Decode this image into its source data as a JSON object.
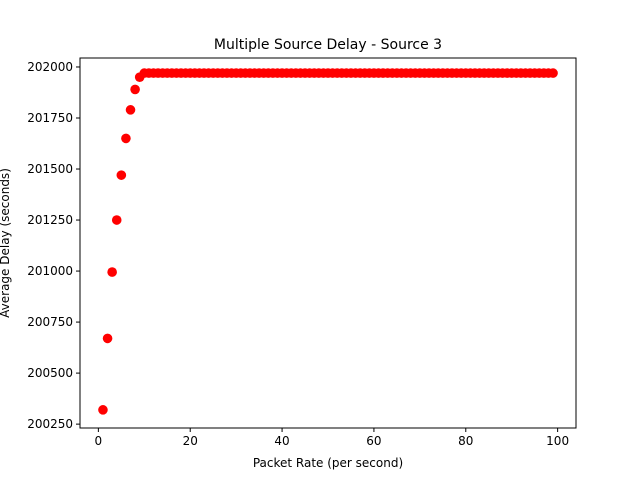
{
  "chart_data": {
    "type": "scatter",
    "title": "Multiple Source Delay - Source 3",
    "xlabel": "Packet Rate (per second)",
    "ylabel": "Average Delay (seconds)",
    "xlim": [
      -4,
      104
    ],
    "ylim": [
      200231,
      202044
    ],
    "xticks": [
      0,
      20,
      40,
      60,
      80,
      100
    ],
    "yticks": [
      200250,
      200500,
      200750,
      201000,
      201250,
      201500,
      201750,
      202000
    ],
    "grid": false,
    "marker_color": "#ff0000",
    "series": [
      {
        "x": [
          1,
          2,
          3,
          4,
          5,
          6,
          7,
          8,
          9,
          10,
          11,
          12,
          13,
          14,
          15,
          16,
          17,
          18,
          19,
          20,
          21,
          22,
          23,
          24,
          25,
          26,
          27,
          28,
          29,
          30,
          31,
          32,
          33,
          34,
          35,
          36,
          37,
          38,
          39,
          40,
          41,
          42,
          43,
          44,
          45,
          46,
          47,
          48,
          49,
          50,
          51,
          52,
          53,
          54,
          55,
          56,
          57,
          58,
          59,
          60,
          61,
          62,
          63,
          64,
          65,
          66,
          67,
          68,
          69,
          70,
          71,
          72,
          73,
          74,
          75,
          76,
          77,
          78,
          79,
          80,
          81,
          82,
          83,
          84,
          85,
          86,
          87,
          88,
          89,
          90,
          91,
          92,
          93,
          94,
          95,
          96,
          97,
          98,
          99
        ],
        "y": [
          200320,
          200670,
          200995,
          201250,
          201470,
          201650,
          201790,
          201890,
          201950,
          201970,
          201970,
          201970,
          201970,
          201970,
          201970,
          201970,
          201970,
          201970,
          201970,
          201970,
          201970,
          201970,
          201970,
          201970,
          201970,
          201970,
          201970,
          201970,
          201970,
          201970,
          201970,
          201970,
          201970,
          201970,
          201970,
          201970,
          201970,
          201970,
          201970,
          201970,
          201970,
          201970,
          201970,
          201970,
          201970,
          201970,
          201970,
          201970,
          201970,
          201970,
          201970,
          201970,
          201970,
          201970,
          201970,
          201970,
          201970,
          201970,
          201970,
          201970,
          201970,
          201970,
          201970,
          201970,
          201970,
          201970,
          201970,
          201970,
          201970,
          201970,
          201970,
          201970,
          201970,
          201970,
          201970,
          201970,
          201970,
          201970,
          201970,
          201970,
          201970,
          201970,
          201970,
          201970,
          201970,
          201970,
          201970,
          201970,
          201970,
          201970,
          201970,
          201970,
          201970,
          201970,
          201970,
          201970,
          201970,
          201970,
          201970
        ]
      }
    ]
  }
}
